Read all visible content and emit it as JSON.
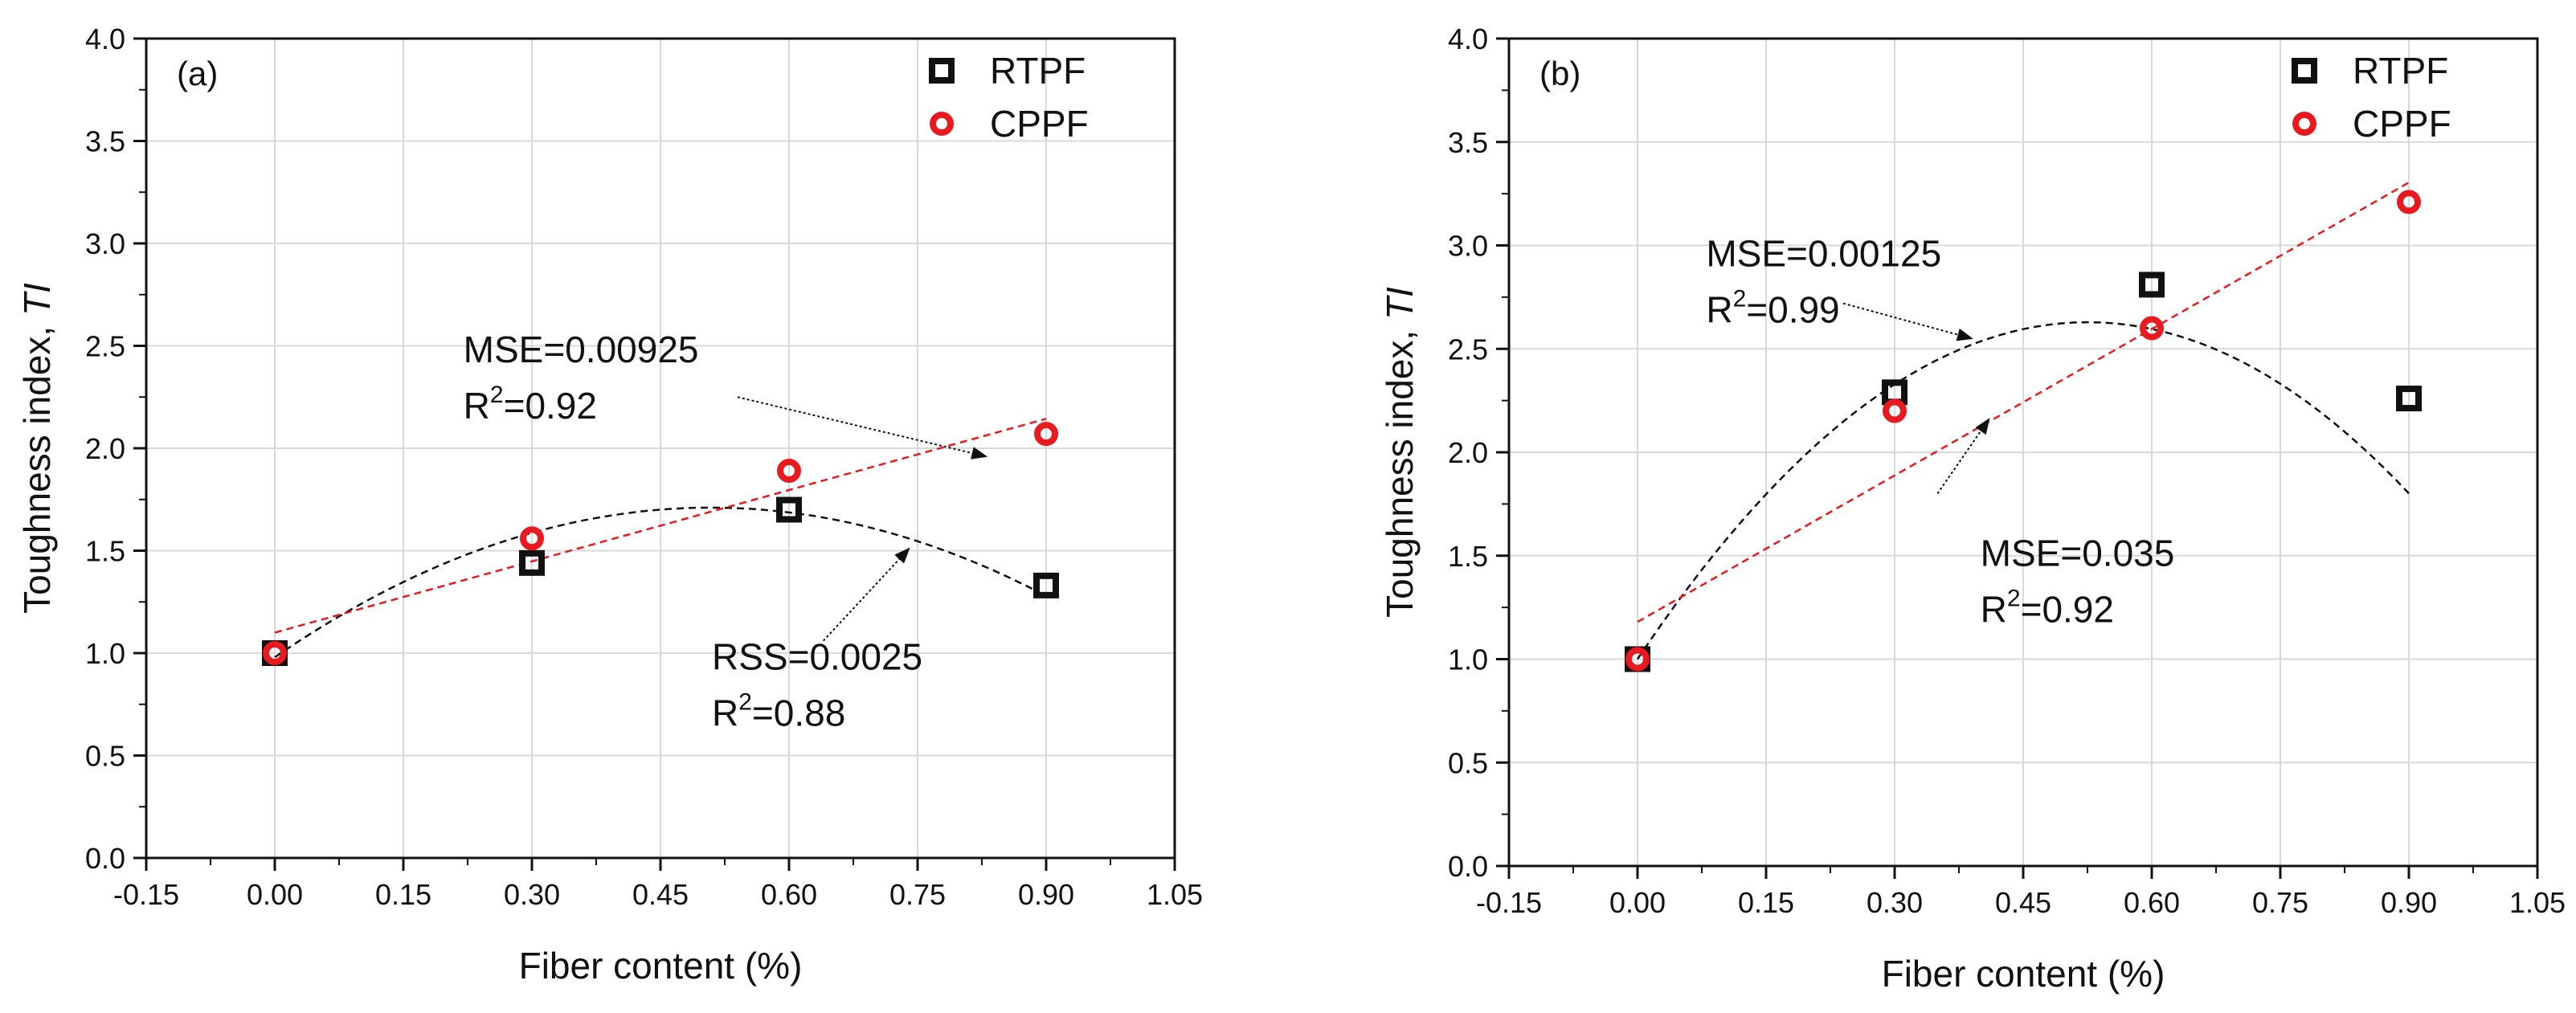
{
  "chart_data": [
    {
      "type": "scatter",
      "panel_label": "(a)",
      "xlabel": "Fiber content (%)",
      "ylabel_main": "Toughness index, ",
      "ylabel_italic": "TI",
      "xlim": [
        -0.15,
        1.05
      ],
      "ylim": [
        0.0,
        4.0
      ],
      "xticks": [
        -0.15,
        0.0,
        0.15,
        0.3,
        0.45,
        0.6,
        0.75,
        0.9,
        1.05
      ],
      "xtick_labels": [
        "-0.15",
        "0.00",
        "0.15",
        "0.30",
        "0.45",
        "0.60",
        "0.75",
        "0.90",
        "1.05"
      ],
      "yticks": [
        0.0,
        0.5,
        1.0,
        1.5,
        2.0,
        2.5,
        3.0,
        3.5,
        4.0
      ],
      "ytick_labels": [
        "0.0",
        "0.5",
        "1.0",
        "1.5",
        "2.0",
        "2.5",
        "3.0",
        "3.5",
        "4.0"
      ],
      "grid": true,
      "legend": "top-right",
      "series": [
        {
          "name": "RTPF",
          "marker": "square",
          "color": "#111111",
          "x": [
            0.0,
            0.3,
            0.6,
            0.9
          ],
          "y": [
            1.0,
            1.44,
            1.7,
            1.33
          ],
          "fit": {
            "kind": "quadratic",
            "coef": [
              0.98,
              2.87,
              -2.82
            ],
            "x_range": [
              0.0,
              0.9
            ],
            "color": "#111111"
          }
        },
        {
          "name": "CPPF",
          "marker": "circle",
          "color": "#e8191f",
          "x": [
            0.0,
            0.3,
            0.6,
            0.9
          ],
          "y": [
            1.0,
            1.56,
            1.89,
            2.07
          ],
          "fit": {
            "kind": "linear",
            "coef": [
              1.1,
              1.16
            ],
            "x_range": [
              0.0,
              0.9
            ],
            "color": "#e8191f"
          }
        }
      ],
      "annotations": [
        {
          "line1": "MSE=0.00925",
          "r_label": "R",
          "r_sup": "2",
          "r_value": "=0.92",
          "x": 0.22,
          "y": 2.42,
          "arrow_from": [
            0.54,
            2.25
          ],
          "arrow_to": [
            0.83,
            1.96
          ]
        },
        {
          "line1": "RSS=0.0025",
          "r_label": "R",
          "r_sup": "2",
          "r_value": "=0.88",
          "x": 0.51,
          "y": 0.92,
          "arrow_from": [
            0.64,
            1.06
          ],
          "arrow_to": [
            0.74,
            1.51
          ]
        }
      ]
    },
    {
      "type": "scatter",
      "panel_label": "(b)",
      "xlabel": "Fiber content (%)",
      "ylabel_main": "Toughness index, ",
      "ylabel_italic": "TI",
      "xlim": [
        -0.15,
        1.05
      ],
      "ylim": [
        0.0,
        4.0
      ],
      "xticks": [
        -0.15,
        0.0,
        0.15,
        0.3,
        0.45,
        0.6,
        0.75,
        0.9,
        1.05
      ],
      "xtick_labels": [
        "-0.15",
        "0.00",
        "0.15",
        "0.30",
        "0.45",
        "0.60",
        "0.75",
        "0.90",
        "1.05"
      ],
      "yticks": [
        0.0,
        0.5,
        1.0,
        1.5,
        2.0,
        2.5,
        3.0,
        3.5,
        4.0
      ],
      "ytick_labels": [
        "0.0",
        "0.5",
        "1.0",
        "1.5",
        "2.0",
        "2.5",
        "3.0",
        "3.5",
        "4.0"
      ],
      "grid": true,
      "legend": "top-right",
      "series": [
        {
          "name": "RTPF",
          "marker": "square",
          "color": "#111111",
          "x": [
            0.0,
            0.3,
            0.6,
            0.9
          ],
          "y": [
            1.0,
            2.29,
            2.81,
            2.26
          ],
          "fit": {
            "kind": "quadratic",
            "coef": [
              1.0,
              6.2,
              -5.9
            ],
            "x_range": [
              0.0,
              0.9
            ],
            "color": "#111111"
          }
        },
        {
          "name": "CPPF",
          "marker": "circle",
          "color": "#e8191f",
          "x": [
            0.0,
            0.3,
            0.6,
            0.9
          ],
          "y": [
            1.0,
            2.2,
            2.6,
            3.21
          ],
          "fit": {
            "kind": "linear",
            "coef": [
              1.18,
              2.36
            ],
            "x_range": [
              0.0,
              0.9
            ],
            "color": "#e8191f"
          }
        }
      ],
      "annotations": [
        {
          "line1": "MSE=0.00125",
          "r_label": "R",
          "r_sup": "2",
          "r_value": "=0.99",
          "x": 0.08,
          "y": 2.9,
          "arrow_from": [
            0.24,
            2.72
          ],
          "arrow_to": [
            0.39,
            2.55
          ]
        },
        {
          "line1": "MSE=0.035",
          "r_label": "R",
          "r_sup": "2",
          "r_value": "=0.92",
          "x": 0.4,
          "y": 1.45,
          "arrow_from": [
            0.35,
            1.8
          ],
          "arrow_to": [
            0.41,
            2.16
          ]
        }
      ]
    }
  ]
}
